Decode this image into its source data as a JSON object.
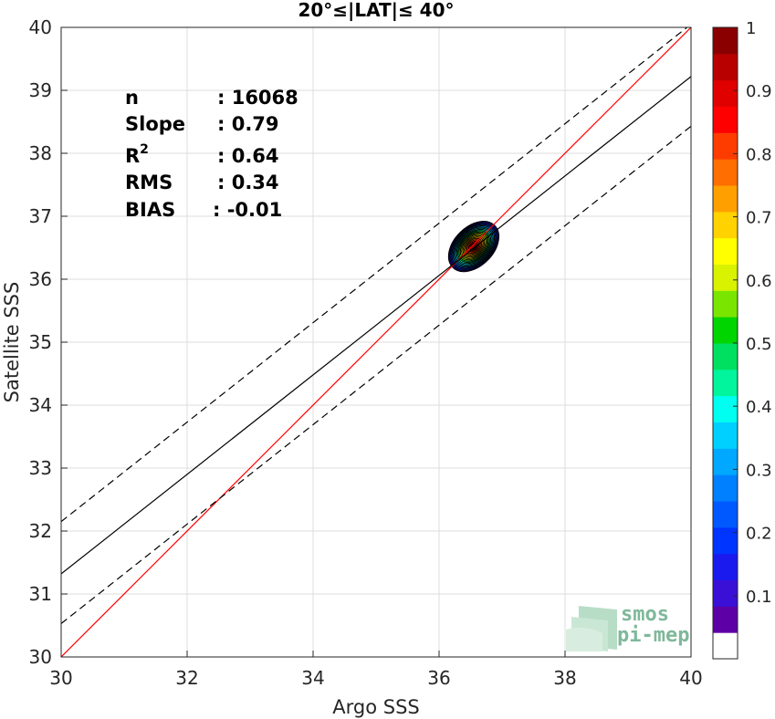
{
  "chart_data": {
    "type": "scatter",
    "title": "20°≤|LAT|≤ 40°",
    "xlabel": "Argo SSS",
    "ylabel": "Satellite SSS",
    "xlim": [
      30,
      40
    ],
    "ylim": [
      30,
      40
    ],
    "xticks": [
      "30",
      "32",
      "34",
      "36",
      "38",
      "40"
    ],
    "yticks": [
      "30",
      "31",
      "32",
      "33",
      "34",
      "35",
      "36",
      "37",
      "38",
      "39",
      "40"
    ],
    "grid": true,
    "stats": [
      {
        "label": "n",
        "value": ": 16068"
      },
      {
        "label": "Slope",
        "value": ": 0.79"
      },
      {
        "label": "R",
        "sup": "2",
        "value": ": 0.64"
      },
      {
        "label": "RMS",
        "value": ": 0.34"
      },
      {
        "label": "BIAS",
        "value": ": -0.01"
      }
    ],
    "lines": [
      {
        "kind": "identity",
        "color": "#ff0000",
        "dash": false,
        "x": [
          30,
          40
        ],
        "y": [
          30,
          40
        ]
      },
      {
        "kind": "regression",
        "color": "#000000",
        "dash": false,
        "x": [
          30,
          40
        ],
        "y": [
          31.32,
          39.22
        ]
      },
      {
        "kind": "upper",
        "color": "#000000",
        "dash": true,
        "x": [
          30,
          40
        ],
        "y": [
          32.15,
          40.05
        ]
      },
      {
        "kind": "lower",
        "color": "#000000",
        "dash": true,
        "x": [
          30,
          40
        ],
        "y": [
          30.53,
          38.43
        ]
      }
    ],
    "density": {
      "center": [
        36.55,
        36.52
      ],
      "contour_levels": [
        0.05,
        0.1,
        0.15,
        0.2,
        0.25,
        0.3,
        0.35,
        0.4,
        0.45,
        0.5,
        0.55,
        0.6,
        0.65,
        0.7,
        0.75,
        0.8,
        0.85,
        0.9,
        0.95
      ],
      "outer_extent_x": [
        36.0,
        37.15
      ],
      "outer_extent_y": [
        35.85,
        37.15
      ],
      "angle_deg": 45
    },
    "colorbar": {
      "range": [
        0,
        1
      ],
      "ticks": [
        "0.1",
        "0.2",
        "0.3",
        "0.4",
        "0.5",
        "0.6",
        "0.7",
        "0.8",
        "0.9",
        "1"
      ],
      "colors": [
        "#ffffff",
        "#5d00a6",
        "#3a0fd6",
        "#1a1aee",
        "#0034ff",
        "#0059ff",
        "#0080ff",
        "#00a8ff",
        "#00d0ff",
        "#00fff0",
        "#00f59c",
        "#00e060",
        "#00d500",
        "#7ae600",
        "#d8f200",
        "#ffff00",
        "#ffd200",
        "#ffa000",
        "#ff6e00",
        "#ff3c00",
        "#ff0000",
        "#e00000",
        "#b80000",
        "#8a0000"
      ]
    }
  },
  "logo": {
    "line1": "smos",
    "line2": "pi-mep"
  }
}
